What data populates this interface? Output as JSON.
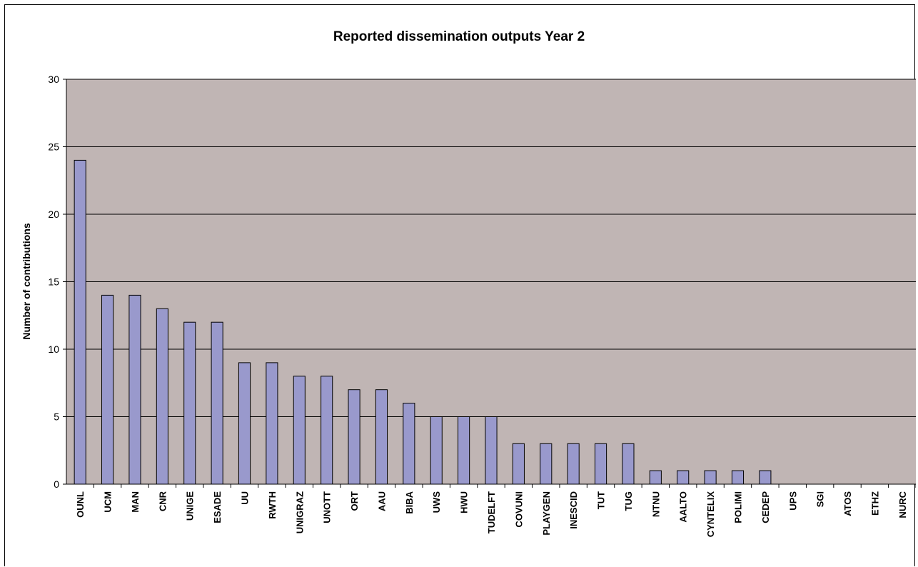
{
  "chart_data": {
    "type": "bar",
    "title": "Reported dissemination outputs Year 2",
    "xlabel": "",
    "ylabel": "Number of contributions",
    "ylim": [
      0,
      30
    ],
    "yticks": [
      0,
      5,
      10,
      15,
      20,
      25,
      30
    ],
    "grid": true,
    "legend": "none",
    "categories": [
      "OUNL",
      "UCM",
      "MAN",
      "CNR",
      "UNIGE",
      "ESADE",
      "UU",
      "RWTH",
      "UNIGRAZ",
      "UNOTT",
      "ORT",
      "AAU",
      "BIBA",
      "UWS",
      "HWU",
      "TUDELFT",
      "COVUNI",
      "PLAYGEN",
      "INESCID",
      "TUT",
      "TUG",
      "NTNU",
      "AALTO",
      "CYNTELIX",
      "POLIMI",
      "CEDEP",
      "UPS",
      "SGI",
      "ATOS",
      "ETHZ",
      "NURC"
    ],
    "values": [
      24,
      14,
      14,
      13,
      12,
      12,
      9,
      9,
      8,
      8,
      7,
      7,
      6,
      5,
      5,
      5,
      3,
      3,
      3,
      3,
      3,
      1,
      1,
      1,
      1,
      1,
      0,
      0,
      0,
      0,
      0
    ],
    "colors": {
      "plot_background": "#c0b5b4",
      "bar_fill": "#9999cc",
      "bar_stroke": "#000000",
      "gridline": "#000000"
    }
  }
}
